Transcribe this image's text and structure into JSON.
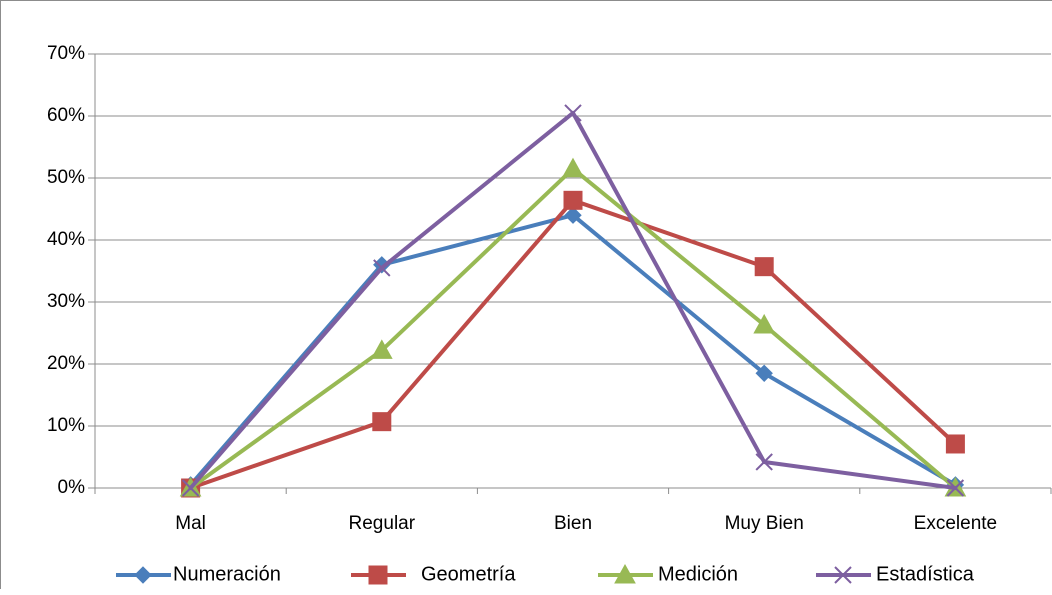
{
  "chart_data": {
    "type": "line",
    "categories": [
      "Mal",
      "Regular",
      "Bien",
      "Muy Bien",
      "Excelente"
    ],
    "y_ticks": [
      "0%",
      "10%",
      "20%",
      "30%",
      "40%",
      "50%",
      "60%",
      "70%"
    ],
    "ylim": [
      0,
      70
    ],
    "grid": "horizontal",
    "legend": "bottom",
    "series": [
      {
        "name": "Numeración",
        "color": "#4a7ebb",
        "marker": "diamond",
        "values": [
          0.5,
          36,
          44,
          18.5,
          0.5
        ]
      },
      {
        "name": "Geometría",
        "color": "#be4b48",
        "marker": "square",
        "values": [
          0,
          10.7,
          46.4,
          35.7,
          7.1
        ]
      },
      {
        "name": "Medición",
        "color": "#98b954",
        "marker": "triangle",
        "values": [
          0,
          22.2,
          51.5,
          26.3,
          0
        ]
      },
      {
        "name": "Estadística",
        "color": "#7d5fa0",
        "marker": "x",
        "values": [
          0,
          35.5,
          60.5,
          4.2,
          0
        ]
      }
    ]
  }
}
